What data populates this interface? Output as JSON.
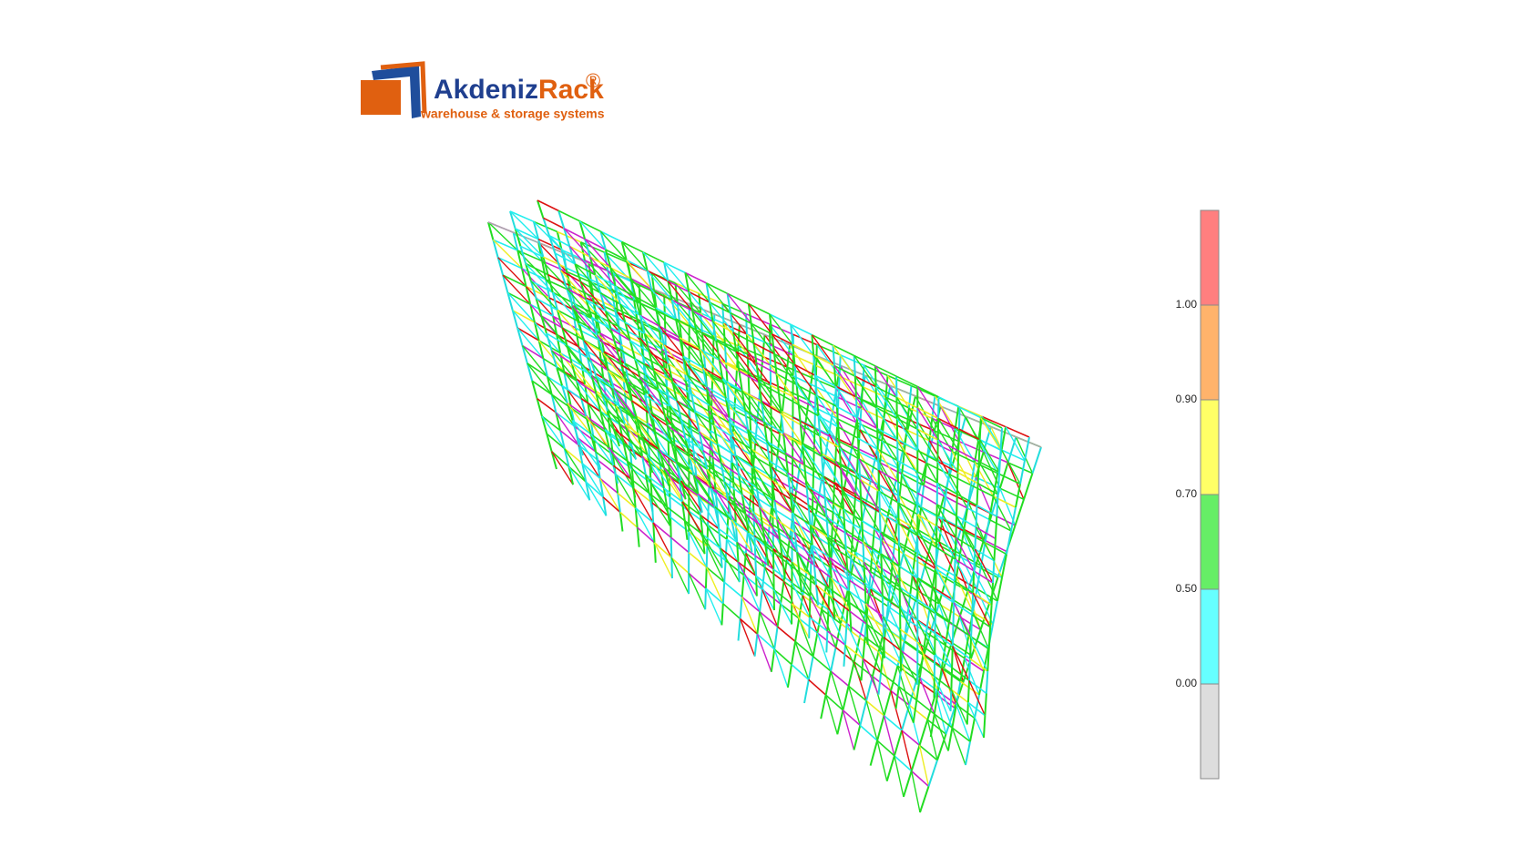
{
  "logo": {
    "name_first": "Akdeniz",
    "name_second": "Rack",
    "mark": "®",
    "tagline": "warehouse & storage systems"
  },
  "legend": {
    "labels": [
      "1.00",
      "0.90",
      "0.70",
      "0.50",
      "0.00"
    ],
    "colors": [
      "#ff7f7f",
      "#ffb36b",
      "#ffff66",
      "#66ee66",
      "#66ffff",
      "#dddddd"
    ]
  }
}
